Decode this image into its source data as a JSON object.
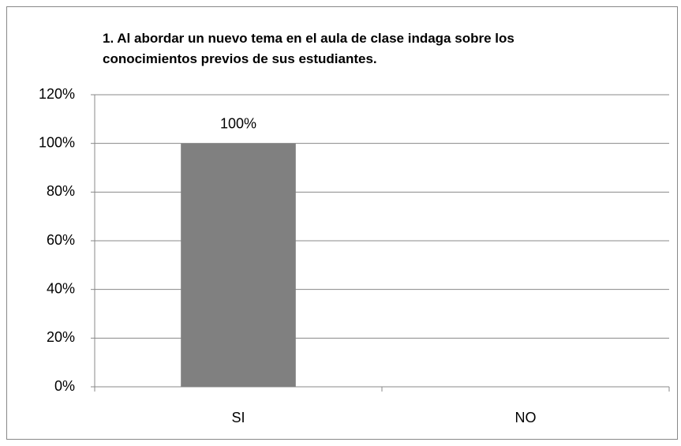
{
  "chart_data": {
    "type": "bar",
    "title": "1.  Al abordar un nuevo tema en el aula de clase indaga sobre los conocimientos previos de sus estudiantes.",
    "categories": [
      "SI",
      "NO"
    ],
    "values": [
      100,
      0
    ],
    "value_labels": [
      "100%",
      null
    ],
    "color": "#808080",
    "ylim": [
      0,
      120
    ],
    "yticks": [
      {
        "value": 0,
        "label": "0%"
      },
      {
        "value": 20,
        "label": "20%"
      },
      {
        "value": 40,
        "label": "40%"
      },
      {
        "value": 60,
        "label": "60%"
      },
      {
        "value": 80,
        "label": "80%"
      },
      {
        "value": 100,
        "label": "100%"
      },
      {
        "value": 120,
        "label": "120%"
      }
    ],
    "grid": true
  }
}
